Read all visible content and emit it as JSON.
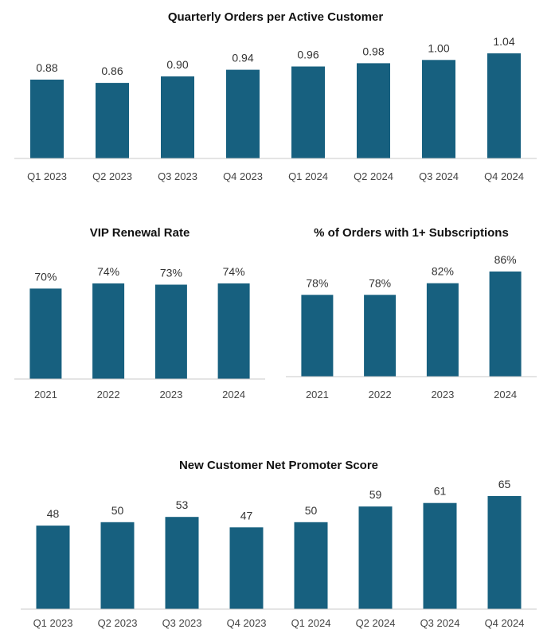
{
  "chart_data": [
    {
      "type": "bar",
      "title": "Quarterly Orders per Active Customer",
      "categories": [
        "Q1 2023",
        "Q2 2023",
        "Q3 2023",
        "Q4 2023",
        "Q1 2024",
        "Q2 2024",
        "Q3 2024",
        "Q4 2024"
      ],
      "values": [
        0.88,
        0.86,
        0.9,
        0.94,
        0.96,
        0.98,
        1.0,
        1.04
      ],
      "labels": [
        "0.88",
        "0.86",
        "0.90",
        "0.94",
        "0.96",
        "0.98",
        "1.00",
        "1.04"
      ],
      "ylim": [
        0.4,
        1.04
      ],
      "color": "#17607f",
      "xlabel": "",
      "ylabel": ""
    },
    {
      "type": "bar",
      "title": "VIP Renewal Rate",
      "categories": [
        "2021",
        "2022",
        "2023",
        "2024"
      ],
      "values": [
        70,
        74,
        73,
        74
      ],
      "labels": [
        "70%",
        "74%",
        "73%",
        "74%"
      ],
      "ylim": [
        0,
        85
      ],
      "color": "#17607f",
      "xlabel": "",
      "ylabel": ""
    },
    {
      "type": "bar",
      "title": "% of Orders with 1+ Subscriptions",
      "categories": [
        "2021",
        "2022",
        "2023",
        "2024"
      ],
      "values": [
        78,
        78,
        82,
        86
      ],
      "labels": [
        "78%",
        "78%",
        "82%",
        "86%"
      ],
      "ylim": [
        50,
        86
      ],
      "color": "#17607f",
      "xlabel": "",
      "ylabel": ""
    },
    {
      "type": "bar",
      "title": "New Customer Net Promoter Score",
      "categories": [
        "Q1 2023",
        "Q2 2023",
        "Q3 2023",
        "Q4 2023",
        "Q1 2024",
        "Q2 2024",
        "Q3 2024",
        "Q4 2024"
      ],
      "values": [
        48,
        50,
        53,
        47,
        50,
        59,
        61,
        65
      ],
      "labels": [
        "48",
        "50",
        "53",
        "47",
        "50",
        "59",
        "61",
        "65"
      ],
      "ylim": [
        0,
        65
      ],
      "color": "#17607f",
      "xlabel": "",
      "ylabel": ""
    }
  ]
}
